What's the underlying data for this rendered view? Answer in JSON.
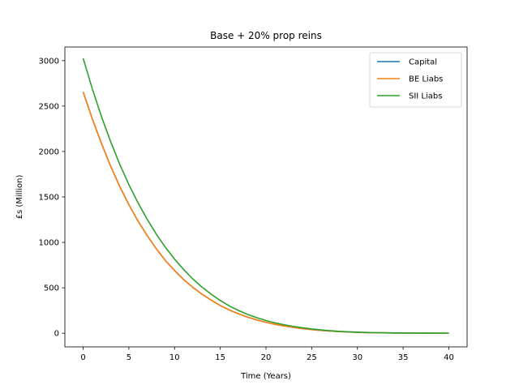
{
  "chart_data": {
    "type": "line",
    "title": "Base + 20% prop reins",
    "xlabel": "Time (Years)",
    "ylabel": "£s (Million)",
    "xlim": [
      -2,
      42
    ],
    "ylim": [
      -150,
      3150
    ],
    "xticks": [
      0,
      5,
      10,
      15,
      20,
      25,
      30,
      35,
      40
    ],
    "yticks": [
      0,
      500,
      1000,
      1500,
      2000,
      2500,
      3000
    ],
    "grid": false,
    "legend_position": "top-right",
    "x": [
      0,
      1,
      2,
      3,
      4,
      5,
      6,
      7,
      8,
      9,
      10,
      11,
      12,
      13,
      14,
      15,
      16,
      17,
      18,
      19,
      20,
      21,
      22,
      23,
      24,
      25,
      26,
      27,
      28,
      29,
      30,
      31,
      32,
      33,
      34,
      35,
      36,
      37,
      38,
      39,
      40
    ],
    "series": [
      {
        "name": "Capital",
        "color": "#1f77b4",
        "values": [
          2655,
          2360,
          2090,
          1840,
          1615,
          1415,
          1235,
          1075,
          930,
          800,
          690,
          590,
          505,
          430,
          365,
          305,
          255,
          213,
          177,
          147,
          120,
          98,
          80,
          64,
          51,
          40,
          31,
          24,
          18,
          14,
          10,
          7,
          5,
          4,
          3,
          2,
          1.5,
          1,
          0.8,
          0.5,
          0.3
        ]
      },
      {
        "name": "BE Liabs",
        "color": "#ff7f0e",
        "values": [
          2655,
          2360,
          2090,
          1840,
          1615,
          1415,
          1235,
          1075,
          930,
          800,
          690,
          590,
          505,
          430,
          365,
          305,
          255,
          213,
          177,
          147,
          120,
          98,
          80,
          64,
          51,
          40,
          31,
          24,
          18,
          14,
          10,
          7,
          5,
          4,
          3,
          2,
          1.5,
          1,
          0.8,
          0.5,
          0.3
        ]
      },
      {
        "name": "SII Liabs",
        "color": "#2ca02c",
        "values": [
          3025,
          2690,
          2385,
          2110,
          1860,
          1635,
          1435,
          1255,
          1090,
          945,
          815,
          700,
          597,
          508,
          430,
          360,
          300,
          250,
          207,
          171,
          140,
          114,
          93,
          75,
          60,
          47,
          37,
          28,
          21,
          16,
          12,
          8.5,
          6,
          4.5,
          3.2,
          2.3,
          1.6,
          1.1,
          0.8,
          0.5,
          0.3
        ]
      }
    ]
  }
}
